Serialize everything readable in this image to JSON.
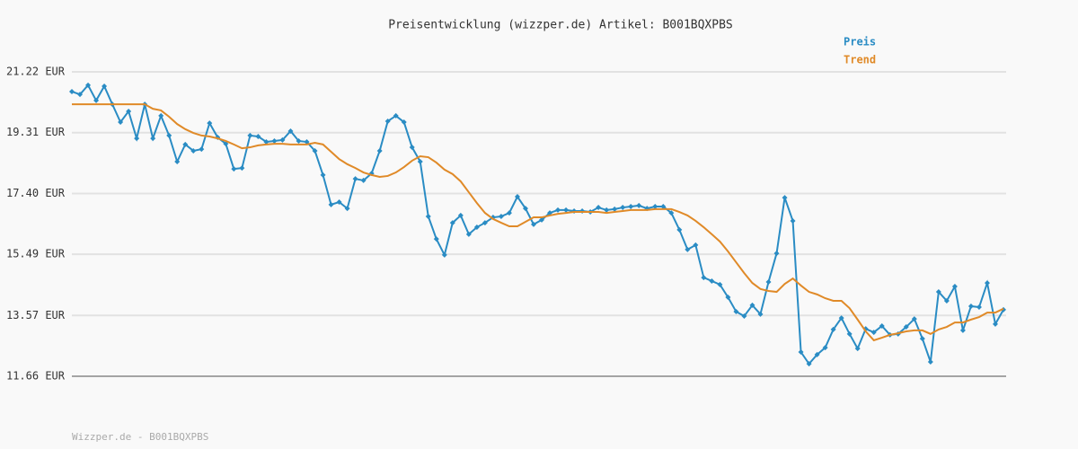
{
  "chart_data": {
    "type": "line",
    "title": "Preisentwicklung (wizzper.de) Artikel: B001BQXPBS",
    "footer": "Wizzper.de - B001BQXPBS",
    "ylim": [
      11.66,
      21.22
    ],
    "yticks": [
      {
        "value": 11.66,
        "label": "11.66 EUR"
      },
      {
        "value": 13.57,
        "label": "13.57 EUR"
      },
      {
        "value": 15.49,
        "label": "15.49 EUR"
      },
      {
        "value": 17.4,
        "label": "17.40 EUR"
      },
      {
        "value": 19.31,
        "label": "19.31 EUR"
      },
      {
        "value": 21.22,
        "label": "21.22 EUR"
      }
    ],
    "grid": true,
    "series": [
      {
        "name": "Preis",
        "color": "#2a8cc4",
        "markers": true,
        "values": [
          20.6,
          20.51,
          20.8,
          20.32,
          20.77,
          20.2,
          19.64,
          19.98,
          19.13,
          20.2,
          19.13,
          19.84,
          19.22,
          18.4,
          18.94,
          18.74,
          18.79,
          19.61,
          19.16,
          18.96,
          18.17,
          18.2,
          19.22,
          19.19,
          19.02,
          19.05,
          19.08,
          19.36,
          19.05,
          19.02,
          18.74,
          17.98,
          17.05,
          17.13,
          16.93,
          17.86,
          17.81,
          18.03,
          18.74,
          19.67,
          19.84,
          19.64,
          18.85,
          18.4,
          16.68,
          15.97,
          15.47,
          16.48,
          16.71,
          16.12,
          16.34,
          16.48,
          16.65,
          16.68,
          16.79,
          17.3,
          16.93,
          16.43,
          16.57,
          16.79,
          16.88,
          16.88,
          16.85,
          16.85,
          16.82,
          16.96,
          16.88,
          16.91,
          16.96,
          16.99,
          17.02,
          16.93,
          16.99,
          16.99,
          16.79,
          16.26,
          15.64,
          15.78,
          14.76,
          14.65,
          14.54,
          14.14,
          13.69,
          13.55,
          13.89,
          13.61,
          14.62,
          15.52,
          17.27,
          16.54,
          12.42,
          12.05,
          12.34,
          12.56,
          13.13,
          13.49,
          12.99,
          12.53,
          13.15,
          13.04,
          13.24,
          12.96,
          12.99,
          13.21,
          13.46,
          12.84,
          12.11,
          14.31,
          14.03,
          14.48,
          13.1,
          13.86,
          13.83,
          14.59,
          13.3,
          13.75
        ]
      },
      {
        "name": "Trend",
        "color": "#e08a28",
        "markers": false,
        "values": [
          20.2,
          20.2,
          20.2,
          20.2,
          20.2,
          20.2,
          20.2,
          20.2,
          20.2,
          20.2,
          20.06,
          20.01,
          19.81,
          19.58,
          19.42,
          19.3,
          19.22,
          19.19,
          19.13,
          19.05,
          18.94,
          18.82,
          18.85,
          18.91,
          18.94,
          18.96,
          18.96,
          18.94,
          18.94,
          18.94,
          18.99,
          18.94,
          18.71,
          18.48,
          18.32,
          18.2,
          18.06,
          17.98,
          17.92,
          17.95,
          18.06,
          18.23,
          18.43,
          18.57,
          18.54,
          18.37,
          18.15,
          18.01,
          17.78,
          17.44,
          17.1,
          16.79,
          16.6,
          16.48,
          16.37,
          16.37,
          16.51,
          16.65,
          16.65,
          16.71,
          16.76,
          16.79,
          16.82,
          16.82,
          16.82,
          16.82,
          16.79,
          16.82,
          16.85,
          16.88,
          16.88,
          16.88,
          16.91,
          16.91,
          16.91,
          16.82,
          16.71,
          16.54,
          16.34,
          16.12,
          15.89,
          15.58,
          15.24,
          14.9,
          14.59,
          14.4,
          14.34,
          14.31,
          14.56,
          14.73,
          14.51,
          14.31,
          14.23,
          14.11,
          14.03,
          14.03,
          13.8,
          13.44,
          13.07,
          12.79,
          12.87,
          12.96,
          13.01,
          13.07,
          13.1,
          13.1,
          12.99,
          13.13,
          13.21,
          13.35,
          13.35,
          13.44,
          13.52,
          13.66,
          13.66,
          13.78
        ]
      }
    ]
  }
}
